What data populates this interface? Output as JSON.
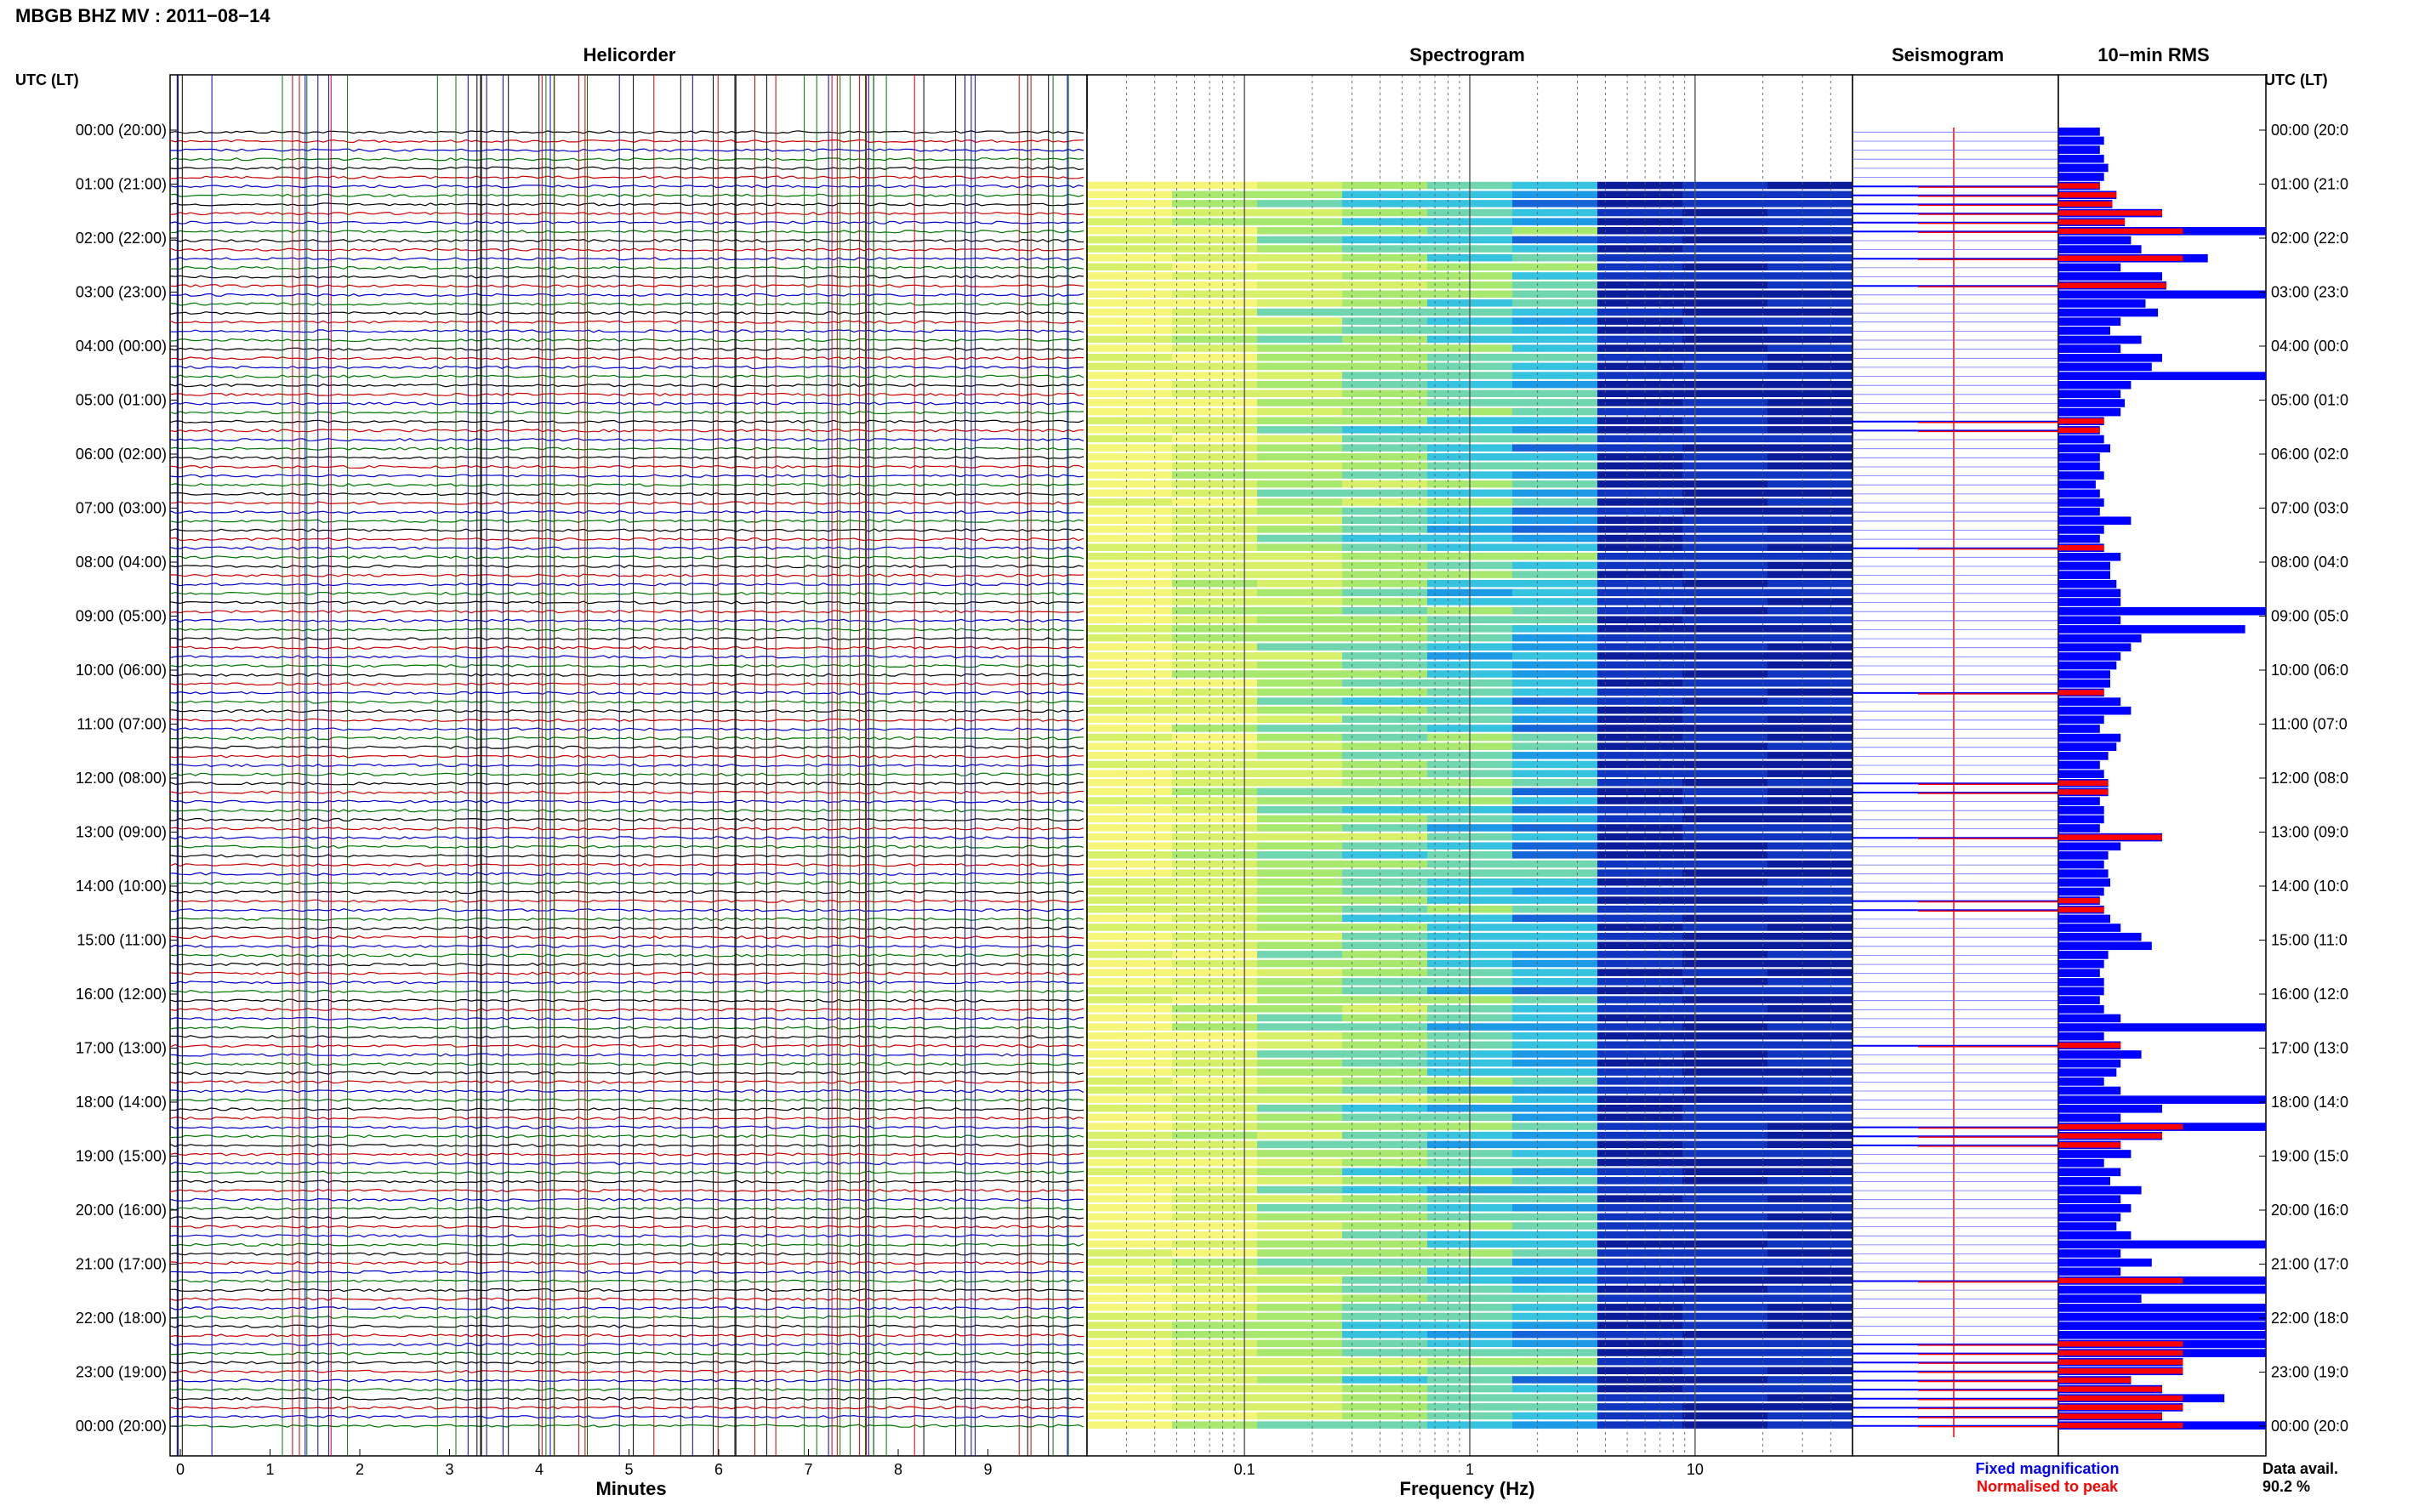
{
  "title": "MBGB BHZ MV : 2011−08−14",
  "panels": {
    "helicorder": "Helicorder",
    "spectrogram": "Spectrogram",
    "seismogram": "Seismogram",
    "rms": "10−min RMS"
  },
  "axis": {
    "left_header": "UTC (LT)",
    "right_header": "UTC (LT)",
    "x_minutes_label": "Minutes",
    "x_frequency_label": "Frequency (Hz)"
  },
  "hour_labels_left": [
    "00:00 (20:00)",
    "01:00 (21:00)",
    "02:00 (22:00)",
    "03:00 (23:00)",
    "04:00 (00:00)",
    "05:00 (01:00)",
    "06:00 (02:00)",
    "07:00 (03:00)",
    "08:00 (04:00)",
    "09:00 (05:00)",
    "10:00 (06:00)",
    "11:00 (07:00)",
    "12:00 (08:00)",
    "13:00 (09:00)",
    "14:00 (10:00)",
    "15:00 (11:00)",
    "16:00 (12:00)",
    "17:00 (13:00)",
    "18:00 (14:00)",
    "19:00 (15:00)",
    "20:00 (16:00)",
    "21:00 (17:00)",
    "22:00 (18:00)",
    "23:00 (19:00)",
    "00:00 (20:00)"
  ],
  "hour_labels_right": [
    "00:00 (20:0",
    "01:00 (21:0",
    "02:00 (22:0",
    "03:00 (23:0",
    "04:00 (00:0",
    "05:00 (01:0",
    "06:00 (02:0",
    "07:00 (03:0",
    "08:00 (04:0",
    "09:00 (05:0",
    "10:00 (06:0",
    "11:00 (07:0",
    "12:00 (08:0",
    "13:00 (09:0",
    "14:00 (10:0",
    "15:00 (11:0",
    "16:00 (12:0",
    "17:00 (13:0",
    "18:00 (14:0",
    "19:00 (15:0",
    "20:00 (16:0",
    "21:00 (17:0",
    "22:00 (18:0",
    "23:00 (19:0",
    "00:00 (20:0"
  ],
  "legend": {
    "fixed": "Fixed magnification",
    "normalised": "Normalised to peak",
    "fixed_color": "#0000ff",
    "normalised_color": "#ff0000"
  },
  "data_avail": {
    "label": "Data avail.",
    "value": "90.2 %"
  },
  "colors": {
    "trace_cycle": [
      "#000000",
      "#cc0000",
      "#0000cc",
      "#007700"
    ],
    "rms_fill": "#0000ff",
    "rms_peak": "#ff0000"
  },
  "chart_data": [
    {
      "type": "line",
      "title": "Helicorder",
      "xlabel": "Minutes",
      "ylabel": "UTC (LT)",
      "x_ticks": [
        "0",
        "1",
        "2",
        "3",
        "4",
        "5",
        "6",
        "7",
        "8",
        "9"
      ],
      "xlim": [
        0,
        10
      ],
      "rows": 144,
      "row_duration_minutes": 10,
      "traces_color_cycle": [
        "black",
        "red",
        "blue",
        "green"
      ]
    },
    {
      "type": "heatmap",
      "title": "Spectrogram",
      "xlabel": "Frequency (Hz)",
      "x_scale": "log",
      "x_ticks": [
        "0.1",
        "1",
        "10"
      ],
      "xlim": [
        0.02,
        50
      ],
      "colormap": "jet"
    },
    {
      "type": "line",
      "title": "Seismogram",
      "series": [
        {
          "name": "Fixed magnification",
          "color": "blue"
        },
        {
          "name": "Normalised to peak",
          "color": "red"
        }
      ]
    },
    {
      "type": "bar",
      "title": "10−min RMS",
      "orientation": "horizontal",
      "rows": 144,
      "values_relative": [
        0.2,
        0.22,
        0.2,
        0.22,
        0.24,
        0.22,
        0.2,
        0.28,
        0.26,
        0.5,
        0.32,
        1.0,
        0.35,
        0.4,
        0.72,
        0.3,
        0.5,
        0.52,
        1.0,
        0.42,
        0.48,
        0.3,
        0.25,
        0.4,
        0.3,
        0.5,
        0.45,
        1.0,
        0.35,
        0.3,
        0.32,
        0.3,
        0.22,
        0.2,
        0.22,
        0.25,
        0.2,
        0.2,
        0.22,
        0.18,
        0.2,
        0.22,
        0.2,
        0.35,
        0.22,
        0.2,
        0.22,
        0.3,
        0.25,
        0.25,
        0.28,
        0.3,
        0.3,
        1.0,
        0.3,
        0.9,
        0.4,
        0.35,
        0.3,
        0.28,
        0.25,
        0.25,
        0.22,
        0.3,
        0.35,
        0.22,
        0.2,
        0.3,
        0.28,
        0.24,
        0.2,
        0.22,
        0.24,
        0.24,
        0.2,
        0.22,
        0.22,
        0.2,
        0.5,
        0.3,
        0.24,
        0.22,
        0.24,
        0.25,
        0.22,
        0.2,
        0.22,
        0.25,
        0.3,
        0.4,
        0.45,
        0.24,
        0.22,
        0.2,
        0.22,
        0.22,
        0.2,
        0.22,
        0.3,
        1.0,
        0.22,
        0.3,
        0.4,
        0.3,
        0.28,
        0.22,
        0.3,
        1.0,
        0.5,
        0.3,
        1.0,
        0.5,
        0.3,
        0.35,
        0.22,
        0.3,
        0.25,
        0.4,
        0.3,
        0.35,
        0.3,
        0.28,
        0.35,
        1.0,
        0.3,
        0.45,
        0.3,
        1.0,
        1.0,
        0.4,
        1.0,
        1.0,
        1.0,
        1.0,
        1.0,
        1.0,
        0.6,
        0.6,
        0.35,
        0.5,
        0.8,
        0.6,
        0.5,
        1.0
      ],
      "peak_rows": [
        6,
        7,
        8,
        9,
        10,
        11,
        14,
        17,
        32,
        33,
        46,
        62,
        72,
        73,
        78,
        85,
        86,
        101,
        110,
        111,
        112,
        127,
        134,
        135,
        136,
        137,
        138,
        139,
        140,
        141,
        142,
        143
      ]
    }
  ]
}
